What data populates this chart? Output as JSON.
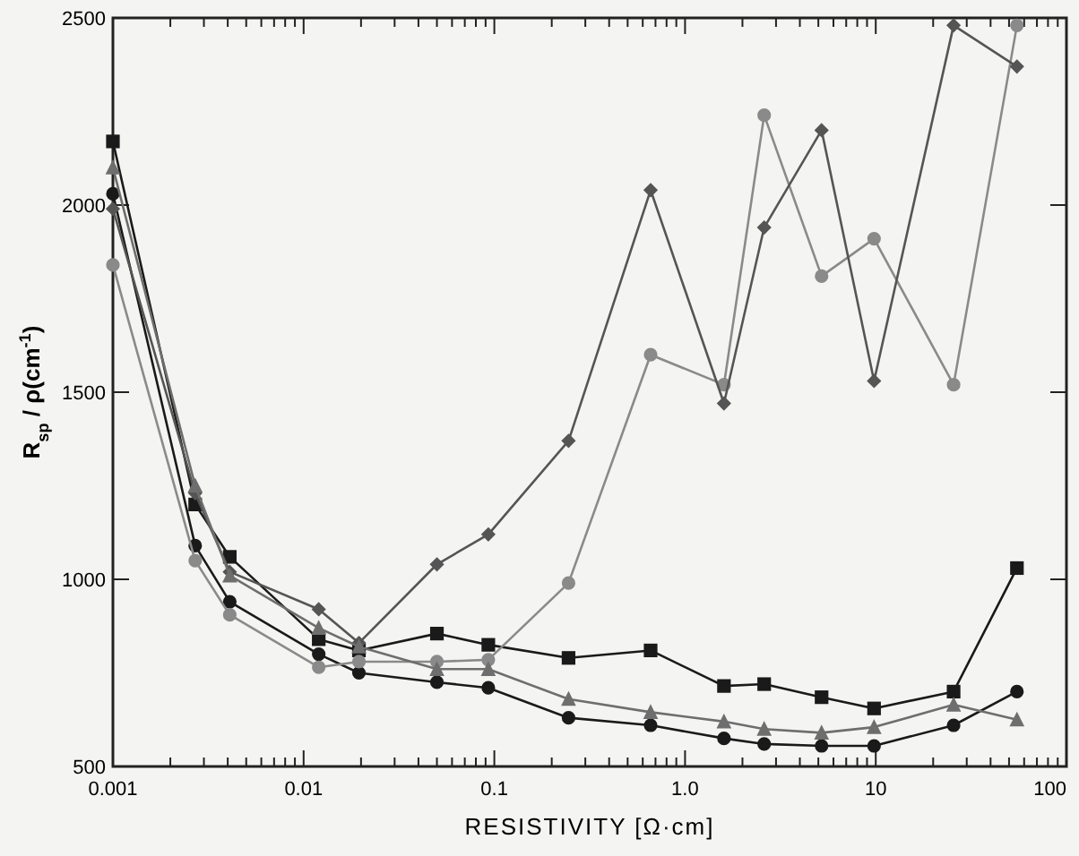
{
  "chart_data": {
    "type": "line",
    "xlabel": "RESISTIVITY [Ω·cm]",
    "ylabel": "R$_{sp}$ / ρ(cm$^{-1}$)",
    "log": "x",
    "x": [
      0.001,
      0.0027,
      0.0041,
      0.012,
      0.0195,
      0.05,
      0.093,
      0.245,
      0.66,
      1.6,
      2.6,
      5.2,
      9.8,
      25.6,
      55
    ],
    "xlim": [
      0.001,
      100
    ],
    "xticks": [
      {
        "value": 0.001,
        "label": "0.001"
      },
      {
        "value": 0.01,
        "label": "0.01"
      },
      {
        "value": 0.1,
        "label": "0.1"
      },
      {
        "value": 1,
        "label": "1.0"
      },
      10,
      100
    ],
    "ylim": [
      500,
      2500
    ],
    "yticks": [
      500,
      1000,
      1500,
      2000,
      2500
    ],
    "line_style": "solid",
    "series": [
      {
        "color": "#1a1a1a",
        "marker": "circle",
        "values": [
          2030,
          1090,
          940,
          800,
          750,
          725,
          710,
          630,
          610,
          575,
          560,
          555,
          555,
          610,
          700
        ]
      },
      {
        "color": "#1a1a1a",
        "marker": "square",
        "values": [
          2170,
          1200,
          1060,
          840,
          810,
          855,
          825,
          790,
          810,
          715,
          720,
          685,
          655,
          700,
          1030
        ]
      },
      {
        "color": "#8a8a8a",
        "marker": "circle",
        "values": [
          1840,
          1050,
          905,
          765,
          780,
          780,
          785,
          990,
          1600,
          1520,
          2240,
          1810,
          1910,
          1520,
          2480
        ]
      },
      {
        "color": "#555555",
        "marker": "diamond",
        "values": [
          1990,
          1230,
          1020,
          920,
          830,
          1040,
          1120,
          1370,
          2040,
          1470,
          1940,
          2200,
          1530,
          2480,
          2370
        ]
      },
      {
        "color": "#6e6e6e",
        "marker": "triangle",
        "values": [
          2100,
          1250,
          1010,
          870,
          820,
          760,
          760,
          680,
          645,
          620,
          600,
          590,
          605,
          665,
          625
        ]
      }
    ]
  }
}
